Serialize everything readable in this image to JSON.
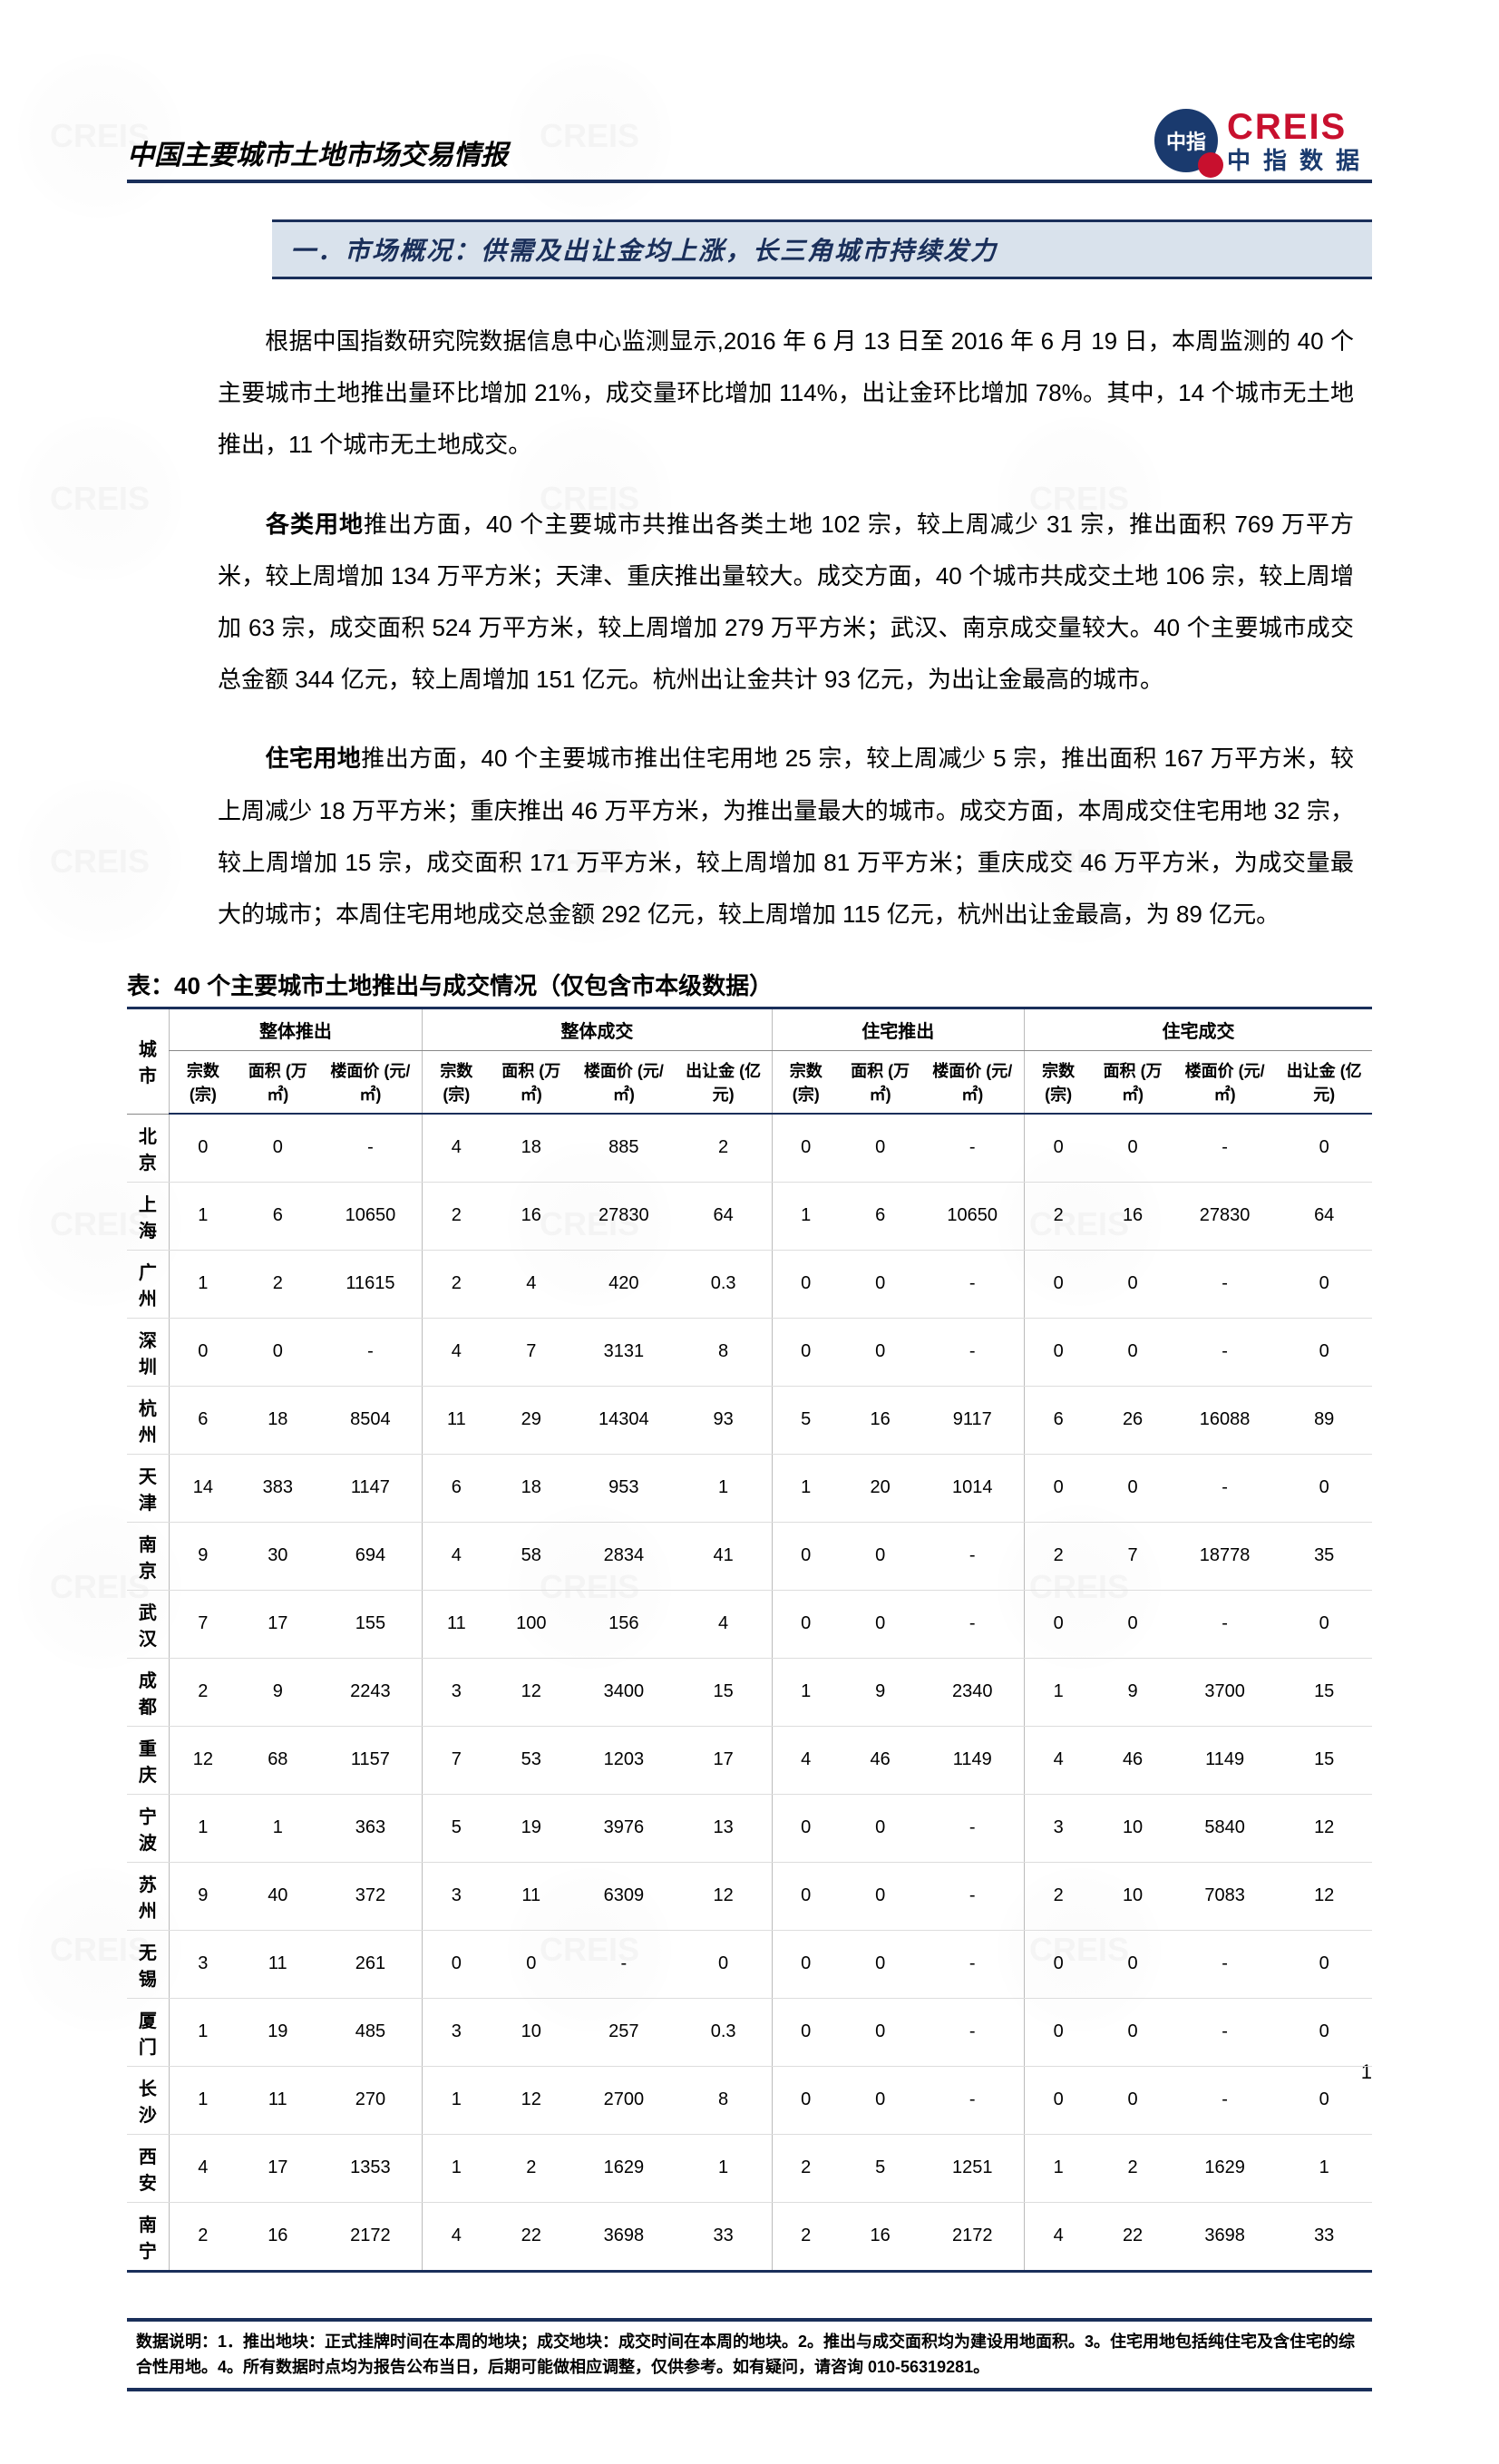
{
  "header": {
    "title": "中国主要城市土地市场交易情报",
    "logo_en": "CREIS",
    "logo_cn": "中指数据",
    "logo_mark": "中指"
  },
  "section": {
    "title": "一．市场概况：供需及出让金均上涨，长三角城市持续发力"
  },
  "paragraphs": {
    "p1": "根据中国指数研究院数据信息中心监测显示,2016 年 6 月 13 日至 2016 年 6 月 19 日，本周监测的 40 个主要城市土地推出量环比增加 21%，成交量环比增加 114%，出让金环比增加 78%。其中，14 个城市无土地推出，11 个城市无土地成交。",
    "p2_lead": "各类用地",
    "p2": "推出方面，40 个主要城市共推出各类土地 102 宗，较上周减少 31 宗，推出面积 769 万平方米，较上周增加 134 万平方米；天津、重庆推出量较大。成交方面，40 个城市共成交土地 106 宗，较上周增加 63 宗，成交面积 524 万平方米，较上周增加 279 万平方米；武汉、南京成交量较大。40 个主要城市成交总金额 344 亿元，较上周增加 151 亿元。杭州出让金共计 93 亿元，为出让金最高的城市。",
    "p3_lead": "住宅用地",
    "p3": "推出方面，40 个主要城市推出住宅用地 25 宗，较上周减少 5 宗，推出面积 167 万平方米，较上周减少 18 万平方米；重庆推出 46 万平方米，为推出量最大的城市。成交方面，本周成交住宅用地 32 宗，较上周增加 15 宗，成交面积 171 万平方米，较上周增加 81 万平方米；重庆成交 46 万平方米，为成交量最大的城市；本周住宅用地成交总金额 292 亿元，较上周增加 115 亿元，杭州出让金最高，为 89 亿元。"
  },
  "table": {
    "caption": "表：40 个主要城市土地推出与成交情况（仅包含市本级数据）",
    "group_headers": [
      "城市",
      "整体推出",
      "整体成交",
      "住宅推出",
      "住宅成交"
    ],
    "sub_headers": {
      "city": "城市",
      "zongshu": "宗数\n(宗)",
      "mianji": "面积\n(万㎡)",
      "loumian": "楼面价\n(元/㎡)",
      "churang": "出让金\n(亿元)"
    },
    "rows": [
      {
        "city": "北京",
        "g1": [
          "0",
          "0",
          "-"
        ],
        "g2": [
          "4",
          "18",
          "885",
          "2"
        ],
        "g3": [
          "0",
          "0",
          "-"
        ],
        "g4": [
          "0",
          "0",
          "-",
          "0"
        ]
      },
      {
        "city": "上海",
        "g1": [
          "1",
          "6",
          "10650"
        ],
        "g2": [
          "2",
          "16",
          "27830",
          "64"
        ],
        "g3": [
          "1",
          "6",
          "10650"
        ],
        "g4": [
          "2",
          "16",
          "27830",
          "64"
        ]
      },
      {
        "city": "广州",
        "g1": [
          "1",
          "2",
          "11615"
        ],
        "g2": [
          "2",
          "4",
          "420",
          "0.3"
        ],
        "g3": [
          "0",
          "0",
          "-"
        ],
        "g4": [
          "0",
          "0",
          "-",
          "0"
        ]
      },
      {
        "city": "深圳",
        "g1": [
          "0",
          "0",
          "-"
        ],
        "g2": [
          "4",
          "7",
          "3131",
          "8"
        ],
        "g3": [
          "0",
          "0",
          "-"
        ],
        "g4": [
          "0",
          "0",
          "-",
          "0"
        ]
      },
      {
        "city": "杭州",
        "g1": [
          "6",
          "18",
          "8504"
        ],
        "g2": [
          "11",
          "29",
          "14304",
          "93"
        ],
        "g3": [
          "5",
          "16",
          "9117"
        ],
        "g4": [
          "6",
          "26",
          "16088",
          "89"
        ]
      },
      {
        "city": "天津",
        "g1": [
          "14",
          "383",
          "1147"
        ],
        "g2": [
          "6",
          "18",
          "953",
          "1"
        ],
        "g3": [
          "1",
          "20",
          "1014"
        ],
        "g4": [
          "0",
          "0",
          "-",
          "0"
        ]
      },
      {
        "city": "南京",
        "g1": [
          "9",
          "30",
          "694"
        ],
        "g2": [
          "4",
          "58",
          "2834",
          "41"
        ],
        "g3": [
          "0",
          "0",
          "-"
        ],
        "g4": [
          "2",
          "7",
          "18778",
          "35"
        ]
      },
      {
        "city": "武汉",
        "g1": [
          "7",
          "17",
          "155"
        ],
        "g2": [
          "11",
          "100",
          "156",
          "4"
        ],
        "g3": [
          "0",
          "0",
          "-"
        ],
        "g4": [
          "0",
          "0",
          "-",
          "0"
        ]
      },
      {
        "city": "成都",
        "g1": [
          "2",
          "9",
          "2243"
        ],
        "g2": [
          "3",
          "12",
          "3400",
          "15"
        ],
        "g3": [
          "1",
          "9",
          "2340"
        ],
        "g4": [
          "1",
          "9",
          "3700",
          "15"
        ]
      },
      {
        "city": "重庆",
        "g1": [
          "12",
          "68",
          "1157"
        ],
        "g2": [
          "7",
          "53",
          "1203",
          "17"
        ],
        "g3": [
          "4",
          "46",
          "1149"
        ],
        "g4": [
          "4",
          "46",
          "1149",
          "15"
        ]
      },
      {
        "city": "宁波",
        "g1": [
          "1",
          "1",
          "363"
        ],
        "g2": [
          "5",
          "19",
          "3976",
          "13"
        ],
        "g3": [
          "0",
          "0",
          "-"
        ],
        "g4": [
          "3",
          "10",
          "5840",
          "12"
        ]
      },
      {
        "city": "苏州",
        "g1": [
          "9",
          "40",
          "372"
        ],
        "g2": [
          "3",
          "11",
          "6309",
          "12"
        ],
        "g3": [
          "0",
          "0",
          "-"
        ],
        "g4": [
          "2",
          "10",
          "7083",
          "12"
        ]
      },
      {
        "city": "无锡",
        "g1": [
          "3",
          "11",
          "261"
        ],
        "g2": [
          "0",
          "0",
          "-",
          "0"
        ],
        "g3": [
          "0",
          "0",
          "-"
        ],
        "g4": [
          "0",
          "0",
          "-",
          "0"
        ]
      },
      {
        "city": "厦门",
        "g1": [
          "1",
          "19",
          "485"
        ],
        "g2": [
          "3",
          "10",
          "257",
          "0.3"
        ],
        "g3": [
          "0",
          "0",
          "-"
        ],
        "g4": [
          "0",
          "0",
          "-",
          "0"
        ]
      },
      {
        "city": "长沙",
        "g1": [
          "1",
          "11",
          "270"
        ],
        "g2": [
          "1",
          "12",
          "2700",
          "8"
        ],
        "g3": [
          "0",
          "0",
          "-"
        ],
        "g4": [
          "0",
          "0",
          "-",
          "0"
        ]
      },
      {
        "city": "西安",
        "g1": [
          "4",
          "17",
          "1353"
        ],
        "g2": [
          "1",
          "2",
          "1629",
          "1"
        ],
        "g3": [
          "2",
          "5",
          "1251"
        ],
        "g4": [
          "1",
          "2",
          "1629",
          "1"
        ]
      },
      {
        "city": "南宁",
        "g1": [
          "2",
          "16",
          "2172"
        ],
        "g2": [
          "4",
          "22",
          "3698",
          "33"
        ],
        "g3": [
          "2",
          "16",
          "2172"
        ],
        "g4": [
          "4",
          "22",
          "3698",
          "33"
        ]
      }
    ]
  },
  "footnote": "数据说明：1．推出地块：正式挂牌时间在本周的地块；成交地块：成交时间在本周的地块。2。推出与成交面积均为建设用地面积。3。住宅用地包括纯住宅及含住宅的综合性用地。4。所有数据时点均为报告公布当日，后期可能做相应调整，仅供参考。如有疑问，请咨询 010-56319281。",
  "page_number": "1",
  "colors": {
    "brand_blue": "#1a2f5a",
    "brand_red": "#c8102e",
    "section_bg": "#d9e2ec"
  }
}
